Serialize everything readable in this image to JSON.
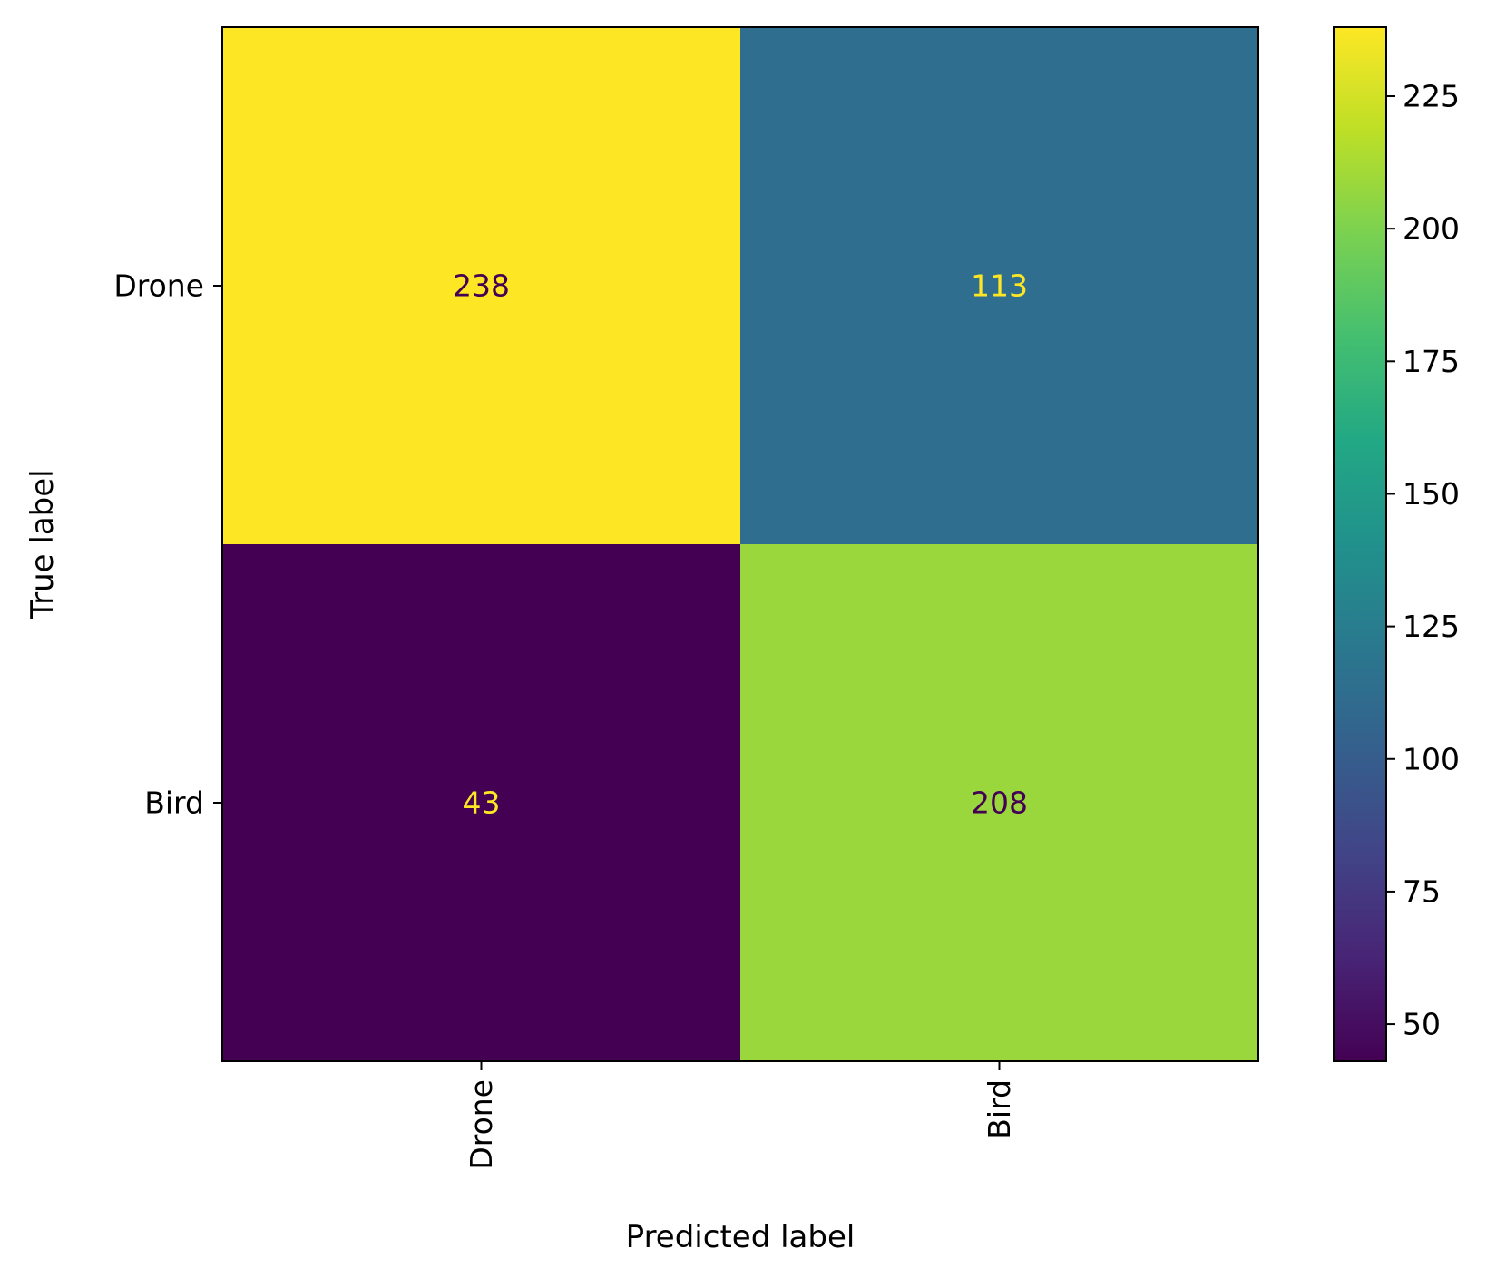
{
  "chart_data": {
    "type": "heatmap",
    "title": "",
    "xlabel": "Predicted label",
    "ylabel": "True label",
    "row_labels": [
      "Drone",
      "Bird"
    ],
    "col_labels": [
      "Drone",
      "Bird"
    ],
    "values": [
      [
        238,
        113
      ],
      [
        43,
        208
      ]
    ],
    "x_tick_rotation": "vertical",
    "colormap": "viridis",
    "colorbar": {
      "range": [
        43,
        238
      ],
      "ticks": [
        50,
        75,
        100,
        125,
        150,
        175,
        200,
        225
      ],
      "tick_labels": [
        "50",
        "75",
        "100",
        "125",
        "150",
        "175",
        "200",
        "225"
      ],
      "placement": "right"
    },
    "text_colors": {
      "on_dark": "#fde725",
      "on_light": "#440154"
    },
    "grid": false
  }
}
